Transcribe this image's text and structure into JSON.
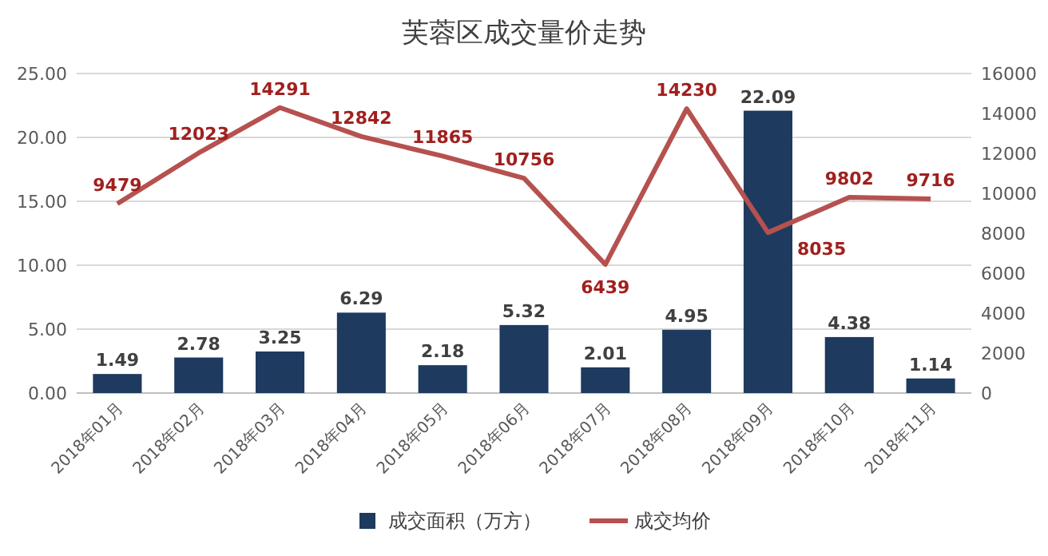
{
  "chart_data": {
    "type": "bar",
    "title": "芙蓉区成交量价走势",
    "categories": [
      "2018年01月",
      "2018年02月",
      "2018年03月",
      "2018年04月",
      "2018年05月",
      "2018年06月",
      "2018年07月",
      "2018年08月",
      "2018年09月",
      "2018年10月",
      "2018年11月"
    ],
    "series": [
      {
        "name": "成交面积（万方）",
        "color": "#1f3a5f",
        "values": [
          1.49,
          2.78,
          3.25,
          6.29,
          2.18,
          5.32,
          2.01,
          4.95,
          22.09,
          4.38,
          1.14
        ]
      },
      {
        "name": "成交均价",
        "type": "line",
        "axis": "y2",
        "color": "#b5514f",
        "values": [
          9479,
          12023,
          14291,
          12842,
          11865,
          10756,
          6439,
          14230,
          8035,
          9802,
          9716
        ]
      }
    ],
    "ylim": [
      0,
      25
    ],
    "yticks": [
      {
        "value": 0,
        "label": "0.00"
      },
      {
        "value": 5,
        "label": "5.00"
      },
      {
        "value": 10,
        "label": "10.00"
      },
      {
        "value": 15,
        "label": "15.00"
      },
      {
        "value": 20,
        "label": "20.00"
      },
      {
        "value": 25,
        "label": "25.00"
      }
    ],
    "y2lim": [
      0,
      16000
    ],
    "y2ticks": [
      0,
      2000,
      4000,
      6000,
      8000,
      10000,
      12000,
      14000,
      16000
    ],
    "grid": "y",
    "legend": "bottom",
    "data_labels": true
  }
}
